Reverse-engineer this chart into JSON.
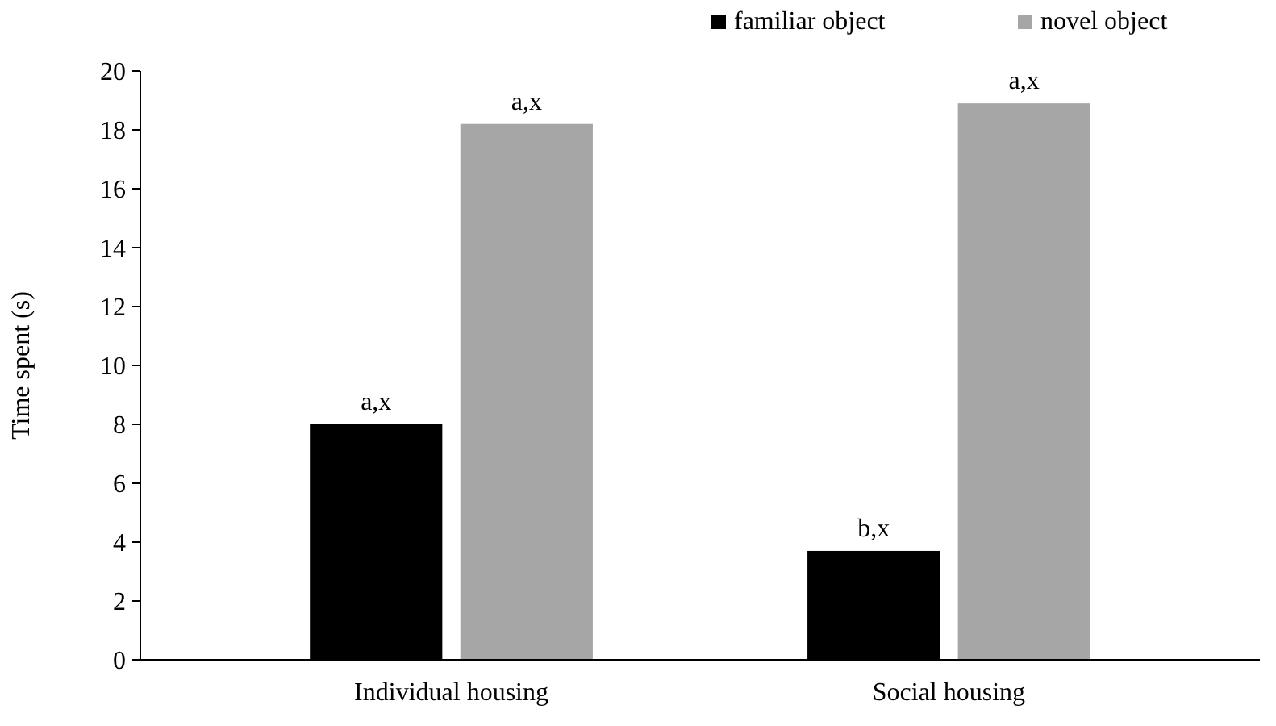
{
  "chart_data": {
    "type": "bar",
    "ylabel": "Time spent (s)",
    "categories": [
      "Individual housing",
      "Social housing"
    ],
    "series": [
      {
        "name": "familiar object",
        "color": "#000000",
        "values": [
          8.0,
          3.7
        ],
        "value_labels": [
          "a,x",
          "b,x"
        ]
      },
      {
        "name": "novel object",
        "color": "#a6a6a6",
        "values": [
          18.2,
          18.9
        ],
        "value_labels": [
          "a,x",
          "a,x"
        ]
      }
    ],
    "ylim": [
      0,
      20
    ],
    "yticks": [
      0,
      2,
      4,
      6,
      8,
      10,
      12,
      14,
      16,
      18,
      20
    ],
    "grid": false,
    "legend": "top right"
  }
}
